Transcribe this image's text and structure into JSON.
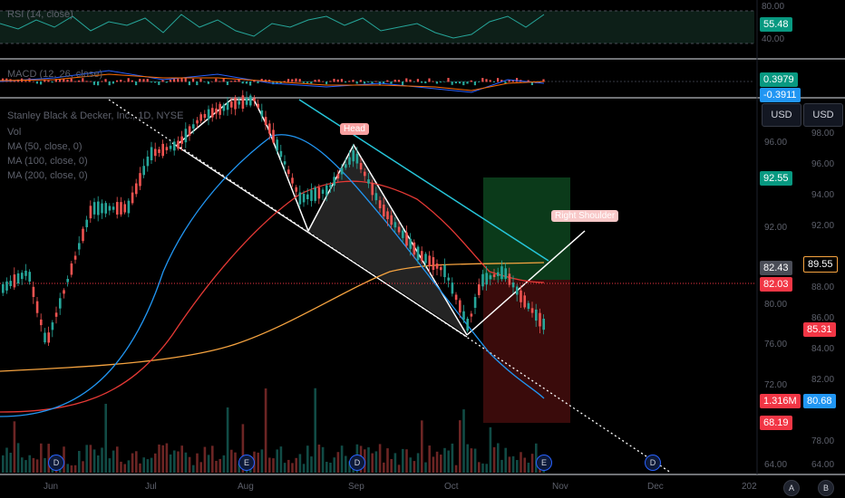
{
  "rsi": {
    "label": "RSI (14, close)",
    "value": "55.48",
    "ticks": [
      "80.00",
      "40.00"
    ]
  },
  "macd": {
    "label": "MACD (12, 26, close)",
    "value1": "0.3979",
    "value2": "-0.3911"
  },
  "main": {
    "symbol": "Stanley Black & Decker, Inc., 1D, NYSE",
    "legend": [
      "Vol",
      "MA (50, close, 0)",
      "MA (100, close, 0)",
      "MA (200, close, 0)"
    ],
    "currency_buttons": [
      "USD",
      "USD"
    ],
    "annotations": {
      "head": "Head",
      "right_shoulder": "Right Shoulder"
    },
    "price_badges": {
      "target": "92.55",
      "current_a": "82.43",
      "current_b": "89.55",
      "last": "82.03",
      "ma": "85.31",
      "volume": "1.316M",
      "ma2": "80.68",
      "stop": "68.19"
    },
    "price_ticks_left": [
      "96.00",
      "92.00",
      "88.00",
      "84.00",
      "80.00",
      "76.00",
      "72.00",
      "68.00",
      "64.00"
    ],
    "price_ticks_right": [
      "98.00",
      "96.00",
      "94.00",
      "92.00",
      "88.00",
      "86.00",
      "84.00",
      "82.00",
      "80.00",
      "78.00",
      "64.00"
    ],
    "time_labels": [
      "Jun",
      "Jul",
      "Aug",
      "Sep",
      "Oct",
      "Nov",
      "Dec",
      "202"
    ],
    "events": [
      "D",
      "E",
      "D",
      "E",
      "D"
    ],
    "scale_buttons": [
      "A",
      "B"
    ]
  },
  "colors": {
    "up": "#26a69a",
    "down": "#ef5350",
    "ma50": "#2196f3",
    "ma100": "#e53935",
    "ma200": "#f7a440",
    "trend": "#26c6da",
    "target_green": "#089981",
    "stop_red": "#f23645"
  }
}
